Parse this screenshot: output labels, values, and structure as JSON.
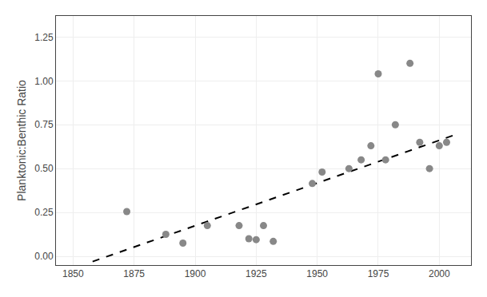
{
  "chart_data": {
    "type": "scatter",
    "ylabel": "Planktonic:Benthic Ratio",
    "series": [
      {
        "type": "scatter",
        "marker": "circle",
        "color": "#888888",
        "x": [
          1872,
          1888,
          1895,
          1905,
          1918,
          1922,
          1925,
          1928,
          1932,
          1948,
          1952,
          1963,
          1968,
          1972,
          1975,
          1978,
          1982,
          1988,
          1992,
          1996,
          2000,
          2003
        ],
        "values": [
          0.255,
          0.125,
          0.075,
          0.175,
          0.175,
          0.1,
          0.095,
          0.175,
          0.085,
          0.415,
          0.48,
          0.5,
          0.55,
          0.63,
          1.04,
          0.55,
          0.75,
          1.1,
          0.65,
          0.5,
          0.63,
          0.65
        ]
      },
      {
        "type": "line",
        "line_style": "dashed",
        "color": "#000000",
        "x": [
          1858,
          2008
        ],
        "values": [
          -0.03,
          0.7
        ]
      }
    ],
    "xlim": [
      1843,
      2013
    ],
    "xticks": [
      1850,
      1875,
      1900,
      1925,
      1950,
      1975,
      2000
    ],
    "ylim": [
      -0.05,
      1.37
    ],
    "yticks": [
      {
        "value": 0.0,
        "label": "0.00"
      },
      0.25,
      {
        "value": 0.5,
        "label": "0.50"
      },
      0.75,
      {
        "value": 1.0,
        "label": "1.00"
      },
      1.25
    ],
    "grid": true
  }
}
